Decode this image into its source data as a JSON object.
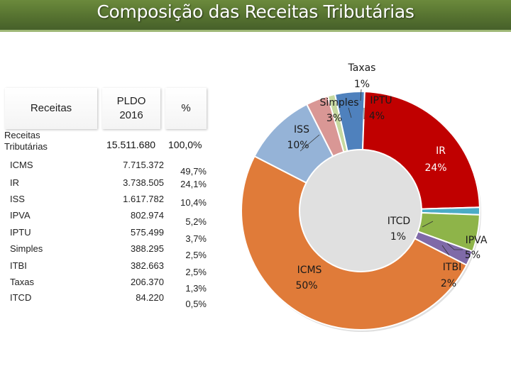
{
  "title": "Composição das Receitas Tributárias",
  "table": {
    "headers": {
      "receitas": "Receitas",
      "pldo": "PLDO 2016",
      "pct": "%"
    },
    "total": {
      "label": "Receitas Tributárias",
      "value": "15.511.680",
      "pct": "100,0%"
    },
    "rows": [
      {
        "label": "ICMS",
        "value": "7.715.372",
        "pct": "49,7%"
      },
      {
        "label": "IR",
        "value": "3.738.505",
        "pct": "24,1%"
      },
      {
        "label": "ISS",
        "value": "1.617.782",
        "pct": "10,4%"
      },
      {
        "label": "IPVA",
        "value": "802.974",
        "pct": "5,2%"
      },
      {
        "label": "IPTU",
        "value": "575.499",
        "pct": "3,7%"
      },
      {
        "label": "Simples",
        "value": "388.295",
        "pct": "2,5%"
      },
      {
        "label": "ITBI",
        "value": "382.663",
        "pct": "2,5%"
      },
      {
        "label": "Taxas",
        "value": "206.370",
        "pct": "1,3%"
      },
      {
        "label": "ITCD",
        "value": "84.220",
        "pct": "0,5%"
      }
    ]
  },
  "chart_data": {
    "type": "pie",
    "variant": "doughnut",
    "title": "Composição das Receitas Tributárias",
    "unit": "%",
    "slices": [
      {
        "name": "Taxas",
        "value": 1,
        "label_name": "Taxas",
        "label_pct": "1%",
        "color": "#c6d9a0"
      },
      {
        "name": "IPTU",
        "value": 4,
        "label_name": "IPTU",
        "label_pct": "4%",
        "color": "#4f81bd"
      },
      {
        "name": "IR",
        "value": 24,
        "label_name": "IR",
        "label_pct": "24%",
        "color": "#c00000"
      },
      {
        "name": "ITCD",
        "value": 1,
        "label_name": "ITCD",
        "label_pct": "1%",
        "color": "#4bacc6"
      },
      {
        "name": "IPVA",
        "value": 5,
        "label_name": "IPVA",
        "label_pct": "5%",
        "color": "#8eb449"
      },
      {
        "name": "ITBI",
        "value": 2,
        "label_name": "ITBI",
        "label_pct": "2%",
        "color": "#7f6aa8"
      },
      {
        "name": "ICMS",
        "value": 50,
        "label_name": "ICMS",
        "label_pct": "50%",
        "color": "#e07b39"
      },
      {
        "name": "ISS",
        "value": 10,
        "label_name": "ISS",
        "label_pct": "10%",
        "color": "#95b3d7"
      },
      {
        "name": "Simples",
        "value": 3,
        "label_name": "Simples",
        "label_pct": "3%",
        "color": "#d99795"
      }
    ]
  }
}
